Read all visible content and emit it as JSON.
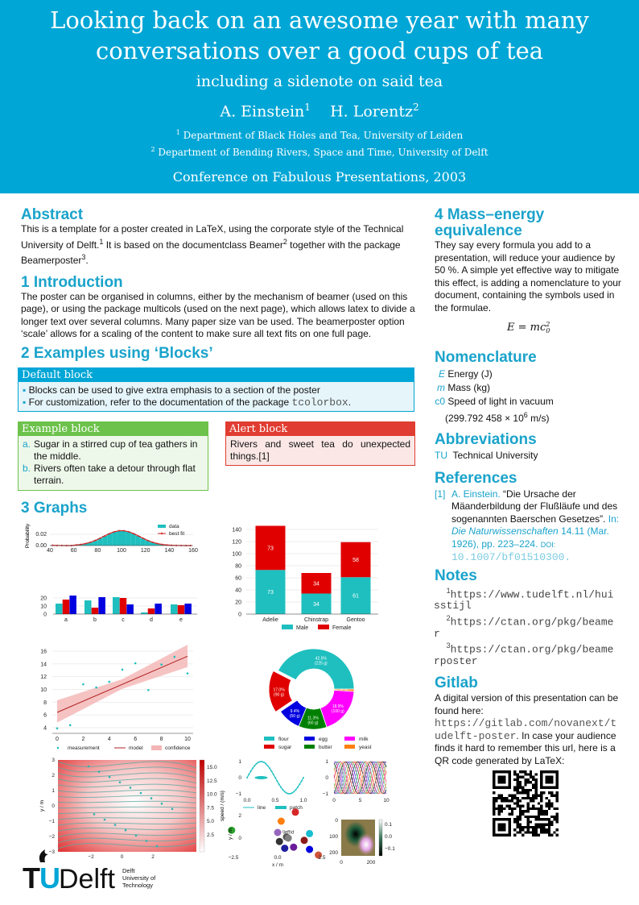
{
  "header": {
    "title_line1": "Looking back on an awesome year with many",
    "title_line2": "conversations over a good cups of tea",
    "subtitle": "including a sidenote on said tea",
    "author1": "A. Einstein",
    "author1_sup": "1",
    "author2": "H. Lorentz",
    "author2_sup": "2",
    "aff1_sup": "1",
    "aff1": "Department of Black Holes and Tea, University of Leiden",
    "aff2_sup": "2",
    "aff2": "Department of Bending Rivers, Space and Time, University of Delft",
    "conference": "Conference on Fabulous Presentations, 2003",
    "background_color": "#00a6d6"
  },
  "abstract": {
    "heading": "Abstract",
    "t1": "This is a template for a poster created in LaTeX, using the corporate style of the Technical University of Delft.",
    "s1": "1",
    "t2": " It is based on the documentclass Beamer",
    "s2": "2",
    "t3": " together with the package Beamerposter",
    "s3": "3",
    "t4": "."
  },
  "intro": {
    "heading": "1 Introduction",
    "text": "The poster can be organised in columns, either by the mechanism of beamer (used on this page), or using the package multicols (used on the next page), which allows latex to divide a longer text over several columns.  Many paper size van be used. The beamerposter option ‘scale’ allows for a scaling of the content to make sure all text fits on one full page."
  },
  "examples": {
    "heading": "2 Examples using ‘Blocks’",
    "default_block": {
      "title": "Default block",
      "items": [
        "Blocks can be used to give extra emphasis to a section of the poster",
        "For customization, refer to the documentation of the package "
      ],
      "mono": "tcolorbox",
      "end": ".",
      "color": "#00a6d6"
    },
    "example_block": {
      "title": "Example block",
      "items": [
        {
          "marker": "a.",
          "text": "Sugar in a stirred cup of tea gathers in the middle."
        },
        {
          "marker": "b.",
          "text": "Rivers often take a detour through flat terrain."
        }
      ],
      "color": "#6cc24a"
    },
    "alert_block": {
      "title": "Alert block",
      "text": "Rivers and sweet tea do unexpected things.[1]",
      "color": "#e03c31"
    }
  },
  "graphs": {
    "heading": "3 Graphs",
    "stream": {
      "xlabel": "x / m",
      "ylabel": "y / m",
      "colorbar_label": "speed / (m/s)",
      "xticks": [
        "−2",
        "0",
        "2"
      ],
      "yticks": [
        "3",
        "2",
        "1",
        "0",
        "−1",
        "−2",
        "−3"
      ],
      "cbticks": [
        "15.0",
        "12.5",
        "10.0",
        "7.5",
        "5.0",
        "2.5"
      ]
    },
    "small": {
      "sine_xticks": [
        "0.0",
        "0.5",
        "1.0"
      ],
      "sine_yticks": [
        "1",
        "0",
        "−1"
      ],
      "legend": [
        "line",
        "patch"
      ],
      "lines_xticks": [
        "0",
        "5",
        "10"
      ],
      "lines_yticks": [
        "1",
        "0",
        "−1"
      ],
      "scatter_xticks": [
        "−2.5",
        "0.0",
        "2.5"
      ],
      "scatter_yticks": [
        "2",
        "0"
      ],
      "scatter_xlabel": "x / m",
      "scatter_ylabel": "y / m",
      "scatter_annotation": "\\left\\d",
      "img_xticks": [
        "0",
        "200"
      ],
      "img_yticks": [
        "0",
        "100",
        "200"
      ],
      "img_cbticks": [
        "0.1",
        "0.0",
        "−0.1"
      ]
    }
  },
  "chart_data": [
    {
      "id": "hist",
      "type": "bar",
      "ylabel": "Probability",
      "xlim": [
        40,
        160
      ],
      "xticks": [
        40,
        60,
        80,
        100,
        120,
        140,
        160
      ],
      "yticks": [
        "0.00",
        "0.02"
      ],
      "ylim": [
        0,
        0.028
      ],
      "x": [
        42,
        46,
        50,
        54,
        58,
        62,
        66,
        70,
        74,
        78,
        82,
        86,
        90,
        94,
        98,
        102,
        106,
        110,
        114,
        118,
        122,
        126,
        130,
        134,
        138,
        142,
        146,
        150,
        154,
        158
      ],
      "values": [
        0.00053,
        0.00024,
        0.0001,
        4e-05,
        1.5e-05,
        0.00107,
        0.00204,
        0.0036,
        0.00592,
        0.00907,
        0.01295,
        0.0172,
        0.0213,
        0.02455,
        0.02636,
        0.02636,
        0.02455,
        0.0213,
        0.0172,
        0.01295,
        0.00907,
        0.00592,
        0.0036,
        0.00204,
        0.00107,
        0.00053,
        0.00024,
        0.0001,
        4e-05,
        1.5e-05
      ],
      "legend": [
        "data",
        "best fit"
      ],
      "legend_position": "top-right",
      "colors": [
        "#1fbfbf",
        "#d62728"
      ]
    },
    {
      "id": "grouped",
      "type": "bar",
      "categories": [
        "a",
        "b",
        "c",
        "d",
        "e"
      ],
      "yticks": [
        0,
        10,
        20
      ],
      "ylim": [
        0,
        25
      ],
      "series": [
        {
          "values": [
            13,
            17,
            21,
            2,
            12
          ],
          "color": "#1fbfbf"
        },
        {
          "values": [
            18,
            8,
            20,
            7,
            11
          ],
          "color": "#e00000"
        },
        {
          "values": [
            23,
            21,
            12,
            13,
            13
          ],
          "color": "#0000e0"
        }
      ]
    },
    {
      "id": "stacked",
      "type": "bar",
      "categories": [
        "Adelie",
        "Chinstrap",
        "Gentoo"
      ],
      "ylim": [
        0,
        140
      ],
      "yticks": [
        0,
        20,
        40,
        60,
        80,
        100,
        120,
        140
      ],
      "series": [
        {
          "name": "Male",
          "values": [
            73,
            34,
            61
          ],
          "color": "#1fbfbf"
        },
        {
          "name": "Female",
          "values": [
            73,
            34,
            58
          ],
          "color": "#e00000"
        }
      ],
      "legend_position": "bottom"
    },
    {
      "id": "regression",
      "type": "scatter",
      "xlim": [
        0,
        10
      ],
      "ylim": [
        4,
        16
      ],
      "xticks": [
        0,
        2,
        4,
        6,
        8,
        10
      ],
      "yticks": [
        4,
        6,
        8,
        10,
        12,
        14,
        16
      ],
      "x": [
        0,
        1,
        2,
        3,
        4,
        5,
        6,
        7,
        8,
        9,
        10
      ],
      "y": [
        3.9,
        4.4,
        10.8,
        10.3,
        11.2,
        13.1,
        14.1,
        9.9,
        13.9,
        15.1,
        12.5
      ],
      "model": {
        "x": [
          0,
          10
        ],
        "y": [
          6.4,
          15.2
        ]
      },
      "confidence": {
        "x": [
          0,
          5,
          10
        ],
        "lower": [
          4.8,
          10.1,
          13.5
        ],
        "upper": [
          8.3,
          11.6,
          17.0
        ]
      },
      "legend": [
        "measurement",
        "model",
        "confidence"
      ],
      "legend_position": "bottom",
      "colors": [
        "#1fbfbf",
        "#b22222",
        "#f4b4b4"
      ]
    },
    {
      "id": "donut",
      "type": "pie",
      "labels": [
        "yeast",
        "milk",
        "butter",
        "egg",
        "sugar",
        "flour"
      ],
      "values": [
        5,
        100,
        60,
        50,
        90,
        225
      ],
      "pct_labels": [
        "0.9%",
        "18.9%",
        "11.3%",
        "9.4%",
        "17.0%",
        "42.5%"
      ],
      "gram_labels": [
        "(5 g)",
        "(100 g)",
        "(60 g)",
        "(50 g)",
        "(90 g)",
        "(225 g)"
      ],
      "colors": [
        "#ff7f0e",
        "#ff00ff",
        "#008000",
        "#0000e0",
        "#e00000",
        "#1fbfbf"
      ],
      "exploded": "sugar",
      "legend_order": [
        "flour",
        "egg",
        "milk",
        "sugar",
        "butter",
        "yeast"
      ],
      "legend_position": "bottom"
    }
  ],
  "right": {
    "mass": {
      "heading1": "4 Mass–energy",
      "heading2": "equivalence",
      "text": "They say every formula you add to a presentation, will reduce your audience by 50 %. A simple yet effective way to mitigate this effect, is adding a nomenclature to your document, containing the symbols used in the formulae.",
      "formula": "E = mc",
      "formula_sup": "2",
      "formula_sub": "0"
    },
    "nomenclature": {
      "heading": "Nomenclature",
      "items": [
        {
          "sym": "E",
          "desc": "Energy (J)"
        },
        {
          "sym": "m",
          "desc": "Mass (kg)"
        },
        {
          "sym": "c0",
          "desc": "Speed of light in vacuum"
        }
      ],
      "c0_value": "(299.792 458 × 10",
      "c0_exp": "6",
      "c0_unit": " m/s)"
    },
    "abbreviations": {
      "heading": "Abbreviations",
      "abbr": "TU",
      "desc": "Technical University"
    },
    "references": {
      "heading": "References",
      "num": "[1]",
      "author": "A. Einstein.",
      "title": " “Die Ursache der Mäanderbildung der Flußläufe und des sogenannten Baerschen Gesetzes”.",
      "in": " In: ",
      "journal": "Die Naturwissenschaften",
      "details": " 14.11 (Mar. 1926), pp. 223–224. ",
      "doi_label": "DOI:",
      "doi": " 10.1007/bf01510300."
    },
    "notes": {
      "heading": "Notes",
      "items": [
        {
          "sup": "1",
          "url": "https://www.tudelft.nl/huisstijl"
        },
        {
          "sup": "2",
          "url": "https://ctan.org/pkg/beamer"
        },
        {
          "sup": "3",
          "url": "https://ctan.org/pkg/beamerposter"
        }
      ]
    },
    "gitlab": {
      "heading": "Gitlab",
      "t1": "A digital version of this presentation can be found here: ",
      "url": "https://gitlab.com/novanext/tudelft-poster",
      "t2": ". In case your audience finds it hard to remember this url, here is a QR code generated by LaTeX:"
    }
  },
  "logo": {
    "text": "TUDelft",
    "line1": "Delft",
    "line2": "University of",
    "line3": "Technology"
  }
}
